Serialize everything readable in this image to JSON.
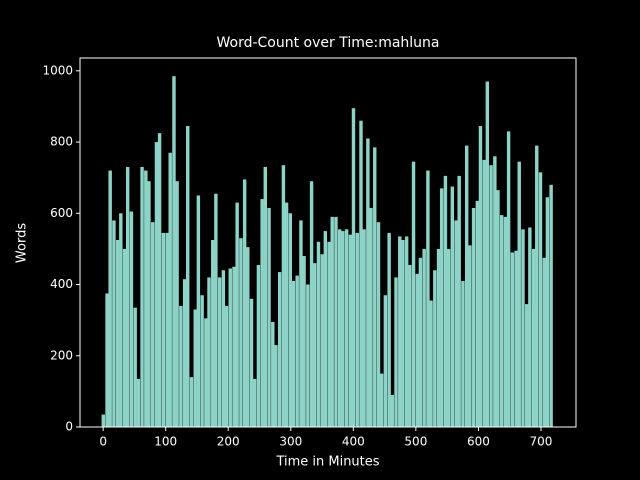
{
  "chart_data": {
    "type": "bar",
    "title": "Word-Count over Time:mahluna",
    "x_label": "Time in Minutes",
    "y_label": "Words",
    "color": "#8dd3c7",
    "x": [
      0,
      6,
      11,
      17,
      23,
      28,
      34,
      39,
      45,
      51,
      56,
      62,
      68,
      73,
      79,
      85,
      90,
      96,
      102,
      107,
      113,
      118,
      124,
      130,
      135,
      141,
      147,
      152,
      158,
      164,
      169,
      175,
      180,
      186,
      192,
      197,
      203,
      209,
      214,
      220,
      226,
      231,
      237,
      242,
      248,
      254,
      259,
      265,
      271,
      276,
      282,
      288,
      293,
      299,
      304,
      310,
      316,
      321,
      327,
      333,
      338,
      344,
      350,
      355,
      361,
      366,
      372,
      378,
      383,
      389,
      395,
      400,
      406,
      412,
      417,
      423,
      428,
      434,
      440,
      445,
      451,
      457,
      462,
      468,
      474,
      479,
      485,
      490,
      496,
      502,
      507,
      513,
      519,
      524,
      530,
      536,
      541,
      547,
      552,
      558,
      564,
      569,
      575,
      581,
      586,
      592,
      598,
      603,
      609,
      614,
      620,
      626,
      631,
      637,
      643,
      648,
      654,
      660,
      665,
      671,
      677,
      682,
      688,
      693,
      699,
      705,
      710,
      716
    ],
    "values": [
      35,
      375,
      720,
      580,
      525,
      600,
      500,
      730,
      605,
      335,
      135,
      730,
      720,
      690,
      575,
      800,
      825,
      545,
      545,
      770,
      985,
      690,
      340,
      415,
      845,
      140,
      330,
      650,
      370,
      305,
      420,
      525,
      655,
      420,
      440,
      340,
      445,
      450,
      630,
      530,
      695,
      505,
      360,
      135,
      455,
      640,
      730,
      615,
      295,
      230,
      435,
      735,
      630,
      600,
      410,
      425,
      580,
      480,
      400,
      690,
      460,
      520,
      485,
      550,
      520,
      590,
      590,
      555,
      550,
      555,
      540,
      895,
      545,
      860,
      555,
      810,
      615,
      785,
      575,
      150,
      370,
      545,
      90,
      420,
      535,
      525,
      535,
      455,
      745,
      430,
      475,
      500,
      720,
      355,
      440,
      500,
      670,
      705,
      500,
      675,
      580,
      705,
      410,
      790,
      510,
      615,
      635,
      845,
      750,
      970,
      735,
      760,
      665,
      595,
      590,
      830,
      490,
      495,
      745,
      555,
      345,
      560,
      500,
      790,
      715,
      475,
      645,
      680
    ],
    "xlim": [
      -37,
      756
    ],
    "ylim": [
      0,
      1036
    ],
    "xticks": [
      0,
      100,
      200,
      300,
      400,
      500,
      600,
      700
    ],
    "yticks": [
      0,
      200,
      400,
      600,
      800,
      1000
    ]
  }
}
